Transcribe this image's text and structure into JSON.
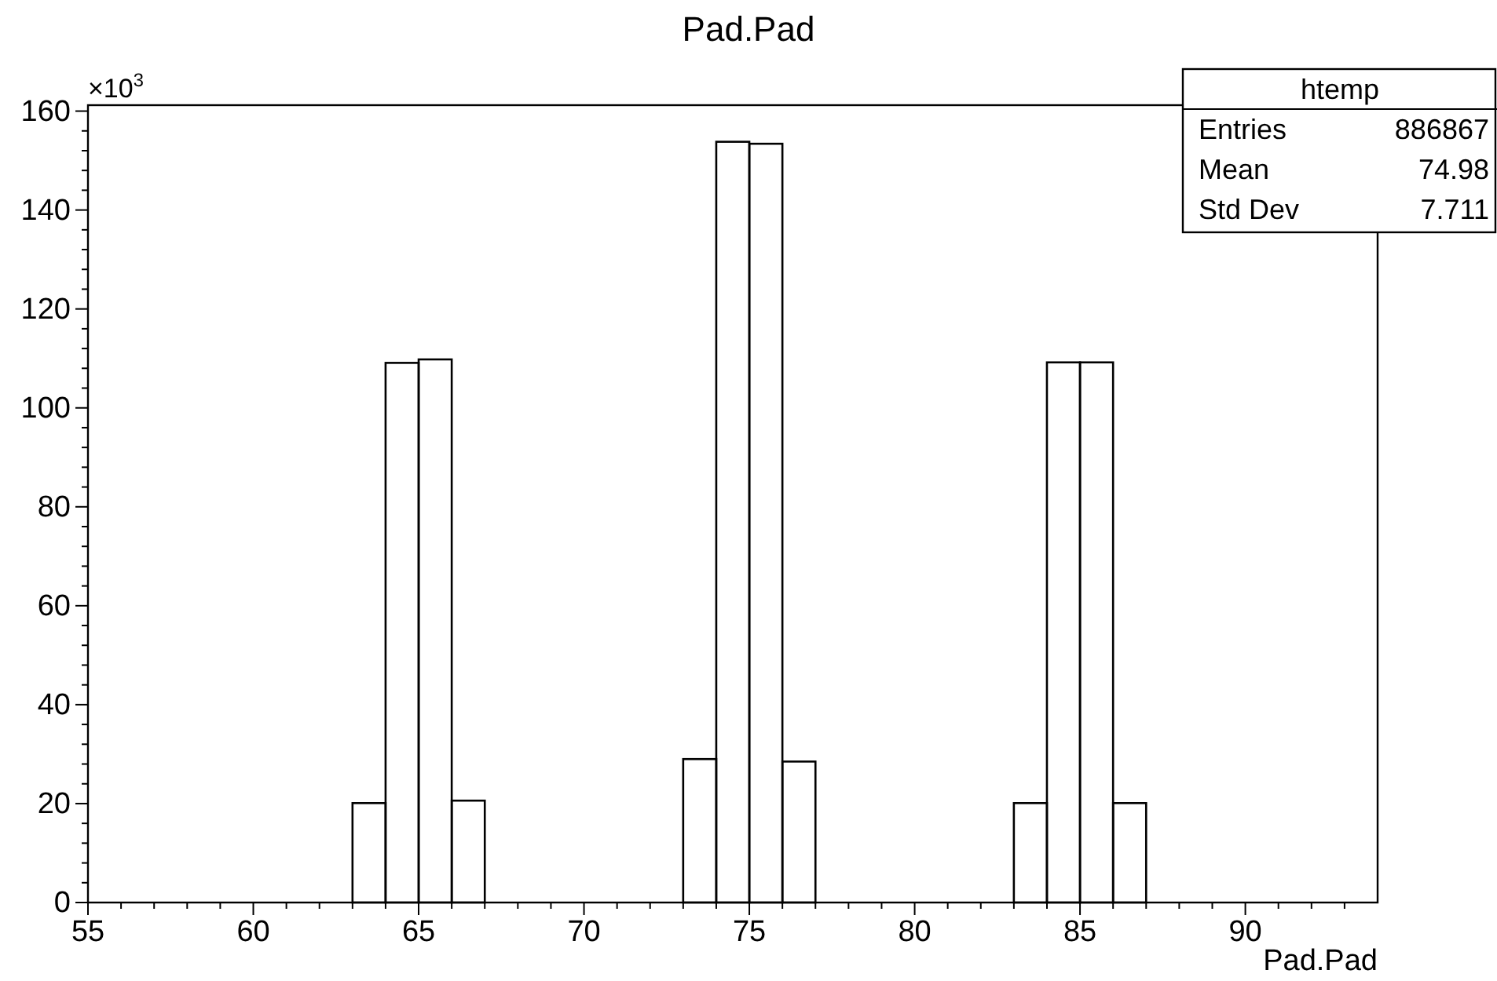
{
  "chart_data": {
    "type": "histogram",
    "title": "Pad.Pad",
    "xlabel": "Pad.Pad",
    "ylabel": "×10$^{3}$",
    "bins": [
      55,
      56,
      57,
      58,
      59,
      60,
      61,
      62,
      63,
      64,
      65,
      66,
      67,
      68,
      69,
      70,
      71,
      72,
      73,
      74,
      75,
      76,
      77,
      78,
      79,
      80,
      81,
      82,
      83,
      84,
      85,
      86,
      87,
      88,
      89,
      90,
      91,
      92,
      93,
      94
    ],
    "values": [
      0,
      0,
      0,
      0,
      0,
      0,
      0,
      0,
      20.1,
      109.1,
      109.8,
      20.6,
      0,
      0,
      0,
      0,
      0,
      0,
      29.0,
      153.8,
      153.4,
      28.5,
      0,
      0,
      0,
      0,
      0,
      0,
      20.1,
      109.2,
      109.2,
      20.1,
      0,
      0,
      0,
      0,
      0,
      0,
      0
    ],
    "color": "#000000",
    "xlim": [
      55,
      94
    ],
    "ylim": [
      0,
      161.2
    ],
    "xticks": [
      55,
      {
        "value": 56,
        "label": null
      },
      {
        "value": 57,
        "label": null
      },
      {
        "value": 58,
        "label": null
      },
      {
        "value": 59,
        "label": null
      },
      60,
      {
        "value": 61,
        "label": null
      },
      {
        "value": 62,
        "label": null
      },
      {
        "value": 63,
        "label": null
      },
      {
        "value": 64,
        "label": null
      },
      65,
      {
        "value": 66,
        "label": null
      },
      {
        "value": 67,
        "label": null
      },
      {
        "value": 68,
        "label": null
      },
      {
        "value": 69,
        "label": null
      },
      70,
      {
        "value": 71,
        "label": null
      },
      {
        "value": 72,
        "label": null
      },
      {
        "value": 73,
        "label": null
      },
      {
        "value": 74,
        "label": null
      },
      75,
      {
        "value": 76,
        "label": null
      },
      {
        "value": 77,
        "label": null
      },
      {
        "value": 78,
        "label": null
      },
      {
        "value": 79,
        "label": null
      },
      80,
      {
        "value": 81,
        "label": null
      },
      {
        "value": 82,
        "label": null
      },
      {
        "value": 83,
        "label": null
      },
      {
        "value": 84,
        "label": null
      },
      85,
      {
        "value": 86,
        "label": null
      },
      {
        "value": 87,
        "label": null
      },
      {
        "value": 88,
        "label": null
      },
      {
        "value": 89,
        "label": null
      },
      90,
      {
        "value": 91,
        "label": null
      },
      {
        "value": 92,
        "label": null
      },
      {
        "value": 93,
        "label": null
      }
    ],
    "yticks": [
      0,
      {
        "value": 4,
        "label": null
      },
      {
        "value": 8,
        "label": null
      },
      {
        "value": 12,
        "label": null
      },
      {
        "value": 16,
        "label": null
      },
      20,
      {
        "value": 24,
        "label": null
      },
      {
        "value": 28,
        "label": null
      },
      {
        "value": 32,
        "label": null
      },
      {
        "value": 36,
        "label": null
      },
      40,
      {
        "value": 44,
        "label": null
      },
      {
        "value": 48,
        "label": null
      },
      {
        "value": 52,
        "label": null
      },
      {
        "value": 56,
        "label": null
      },
      60,
      {
        "value": 64,
        "label": null
      },
      {
        "value": 68,
        "label": null
      },
      {
        "value": 72,
        "label": null
      },
      {
        "value": 76,
        "label": null
      },
      80,
      {
        "value": 84,
        "label": null
      },
      {
        "value": 88,
        "label": null
      },
      {
        "value": 92,
        "label": null
      },
      {
        "value": 96,
        "label": null
      },
      100,
      {
        "value": 104,
        "label": null
      },
      {
        "value": 108,
        "label": null
      },
      {
        "value": 112,
        "label": null
      },
      {
        "value": 116,
        "label": null
      },
      120,
      {
        "value": 124,
        "label": null
      },
      {
        "value": 128,
        "label": null
      },
      {
        "value": 132,
        "label": null
      },
      {
        "value": 136,
        "label": null
      },
      140,
      {
        "value": 144,
        "label": null
      },
      {
        "value": 148,
        "label": null
      },
      {
        "value": 152,
        "label": null
      },
      {
        "value": 156,
        "label": null
      },
      160
    ],
    "annotations": [
      "htemp",
      "Entries",
      "886867",
      "Mean",
      "74.98",
      "Std Dev",
      "7.711"
    ],
    "grid": false
  }
}
